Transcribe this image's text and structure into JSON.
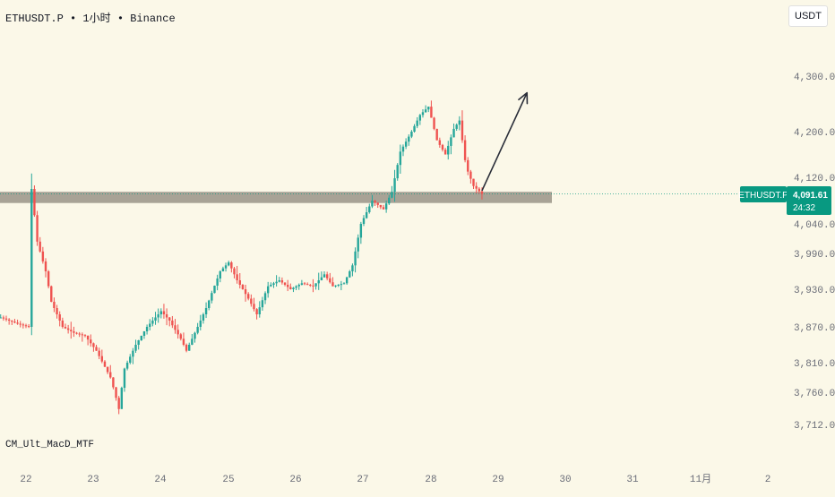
{
  "header": {
    "symbol": "ETHUSDT.P",
    "interval": "1小时",
    "exchange": "Binance",
    "separator": "•"
  },
  "currency_button": "USDT",
  "indicator": "CM_Ult_MacD_MTF",
  "symbol_tag": "ETHUSDT.P",
  "price_tag": {
    "price": "4,091.61",
    "countdown": "24:32"
  },
  "colors": {
    "up": "#26a69a",
    "down": "#ef5350",
    "support_band": "#a8a396",
    "tag": "#089981",
    "arrow": "#2a2e39",
    "background": "#fbf8e8"
  },
  "chart_data": {
    "type": "candlestick",
    "title": "ETHUSDT.P • 1小时 • Binance",
    "y_axis_ticks": [
      "4,300.00",
      "4,200.00",
      "4,120.00",
      "4,040.00",
      "3,990.00",
      "3,930.00",
      "3,870.00",
      "3,810.00",
      "3,760.00",
      "3,712.00"
    ],
    "x_axis_ticks": [
      "22",
      "23",
      "24",
      "25",
      "26",
      "27",
      "28",
      "29",
      "30",
      "31",
      "11月",
      "2"
    ],
    "ylim": [
      3690,
      4340
    ],
    "last_price": 4091.61,
    "support_zone": [
      4082,
      4092
    ],
    "arrow": {
      "from": [
        "10-28 18:00",
        4097
      ],
      "to": [
        "10-29 10:00",
        4270
      ]
    },
    "ohlc_path": [
      [
        "10-21 15:00",
        3885
      ],
      [
        "10-21 21:00",
        3875
      ],
      [
        "10-22 01:00",
        3870
      ],
      [
        "10-22 02:00",
        4100
      ],
      [
        "10-22 04:00",
        4010
      ],
      [
        "10-22 07:00",
        3960
      ],
      [
        "10-22 09:00",
        3910
      ],
      [
        "10-22 13:00",
        3870
      ],
      [
        "10-22 17:00",
        3860
      ],
      [
        "10-22 21:00",
        3855
      ],
      [
        "10-23 01:00",
        3830
      ],
      [
        "10-23 06:00",
        3785
      ],
      [
        "10-23 09:00",
        3735
      ],
      [
        "10-23 11:00",
        3800
      ],
      [
        "10-23 15:00",
        3840
      ],
      [
        "10-23 19:00",
        3870
      ],
      [
        "10-24 00:00",
        3895
      ],
      [
        "10-24 03:00",
        3880
      ],
      [
        "10-24 07:00",
        3850
      ],
      [
        "10-24 09:00",
        3830
      ],
      [
        "10-24 13:00",
        3870
      ],
      [
        "10-24 16:00",
        3900
      ],
      [
        "10-24 21:00",
        3960
      ],
      [
        "10-25 00:00",
        3975
      ],
      [
        "10-25 03:00",
        3945
      ],
      [
        "10-25 07:00",
        3915
      ],
      [
        "10-25 10:00",
        3890
      ],
      [
        "10-25 14:00",
        3935
      ],
      [
        "10-25 18:00",
        3945
      ],
      [
        "10-25 22:00",
        3930
      ],
      [
        "10-26 02:00",
        3940
      ],
      [
        "10-26 06:00",
        3935
      ],
      [
        "10-26 10:00",
        3955
      ],
      [
        "10-26 13:00",
        3935
      ],
      [
        "10-26 17:00",
        3940
      ],
      [
        "10-26 20:00",
        3970
      ],
      [
        "10-26 23:00",
        4040
      ],
      [
        "10-27 03:00",
        4080
      ],
      [
        "10-27 07:00",
        4065
      ],
      [
        "10-27 10:00",
        4095
      ],
      [
        "10-27 13:00",
        4165
      ],
      [
        "10-27 17:00",
        4200
      ],
      [
        "10-27 20:00",
        4230
      ],
      [
        "10-27 23:00",
        4245
      ],
      [
        "10-28 02:00",
        4185
      ],
      [
        "10-28 05:00",
        4160
      ],
      [
        "10-28 08:00",
        4205
      ],
      [
        "10-28 10:00",
        4220
      ],
      [
        "10-28 12:00",
        4150
      ],
      [
        "10-28 13:00",
        4130
      ],
      [
        "10-28 15:00",
        4105
      ],
      [
        "10-28 18:00",
        4091.61
      ]
    ]
  }
}
